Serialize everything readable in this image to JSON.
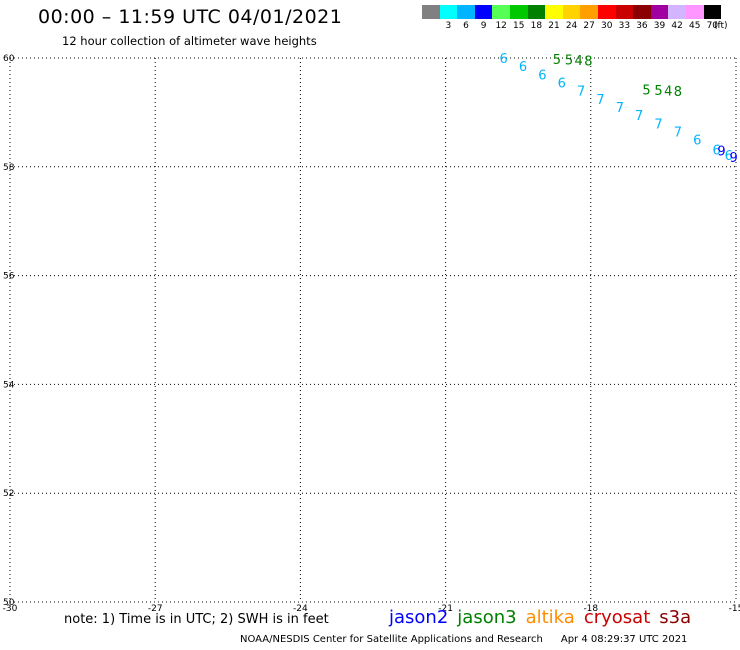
{
  "header": {
    "title": "00:00 – 11:59 UTC 04/01/2021",
    "subtitle": "12 hour collection of altimeter wave heights"
  },
  "scale": {
    "colors": [
      "#808080",
      "#00ffff",
      "#00b4ff",
      "#0000ff",
      "#55ff55",
      "#00c800",
      "#008000",
      "#ffff00",
      "#ffd200",
      "#ffa000",
      "#ff0000",
      "#c80000",
      "#8b0000",
      "#a000a0",
      "#d2b4ff",
      "#ff96ff",
      "#000000"
    ],
    "labels": [
      "",
      "3",
      "6",
      "9",
      "12",
      "15",
      "18",
      "21",
      "24",
      "27",
      "30",
      "33",
      "36",
      "39",
      "42",
      "45",
      "70"
    ],
    "unit": "(ft)"
  },
  "footer": {
    "note": "note: 1) Time is in UTC; 2) SWH is in feet",
    "legend": [
      {
        "name": "jason2",
        "color": "#0000ff"
      },
      {
        "name": "jason3",
        "color": "#008000"
      },
      {
        "name": "altika",
        "color": "#ff8c00"
      },
      {
        "name": "cryosat",
        "color": "#c80000"
      },
      {
        "name": "s3a",
        "color": "#8b0000"
      }
    ],
    "credit": "NOAA/NESDIS Center for Satellite Applications and Research",
    "timestamp": "Apr  4 08:29:37 UTC 2021"
  },
  "chart_data": {
    "type": "scatter",
    "xlim": [
      -30,
      -15
    ],
    "ylim": [
      50,
      60
    ],
    "x_ticks": [
      -30,
      -27,
      -24,
      -21,
      -18,
      -15
    ],
    "y_ticks": [
      50,
      52,
      54,
      56,
      58,
      60
    ],
    "x_tick_labels": [
      "-30",
      "-27",
      "-24",
      "-21",
      "-18",
      "-15"
    ],
    "y_tick_labels": [
      "50",
      "52",
      "54",
      "56",
      "58",
      "60"
    ],
    "grid": true,
    "series": [
      {
        "name": "jason2",
        "color": "#00b4ff",
        "points": [
          {
            "x": -19.8,
            "y": 60.0,
            "label": "6"
          },
          {
            "x": -19.4,
            "y": 59.85,
            "label": "6"
          },
          {
            "x": -19.0,
            "y": 59.7,
            "label": "6"
          },
          {
            "x": -18.6,
            "y": 59.55,
            "label": "6"
          },
          {
            "x": -18.2,
            "y": 59.4,
            "label": "7"
          },
          {
            "x": -17.8,
            "y": 59.25,
            "label": "7"
          },
          {
            "x": -17.4,
            "y": 59.1,
            "label": "7"
          },
          {
            "x": -17.0,
            "y": 58.95,
            "label": "7"
          },
          {
            "x": -16.6,
            "y": 58.8,
            "label": "7"
          },
          {
            "x": -16.2,
            "y": 58.65,
            "label": "7"
          },
          {
            "x": -15.8,
            "y": 58.5,
            "label": "6"
          },
          {
            "x": -15.4,
            "y": 58.32,
            "label": "6"
          },
          {
            "x": -15.15,
            "y": 58.22,
            "label": "6"
          }
        ]
      },
      {
        "name": "jason3",
        "color": "#008000",
        "points": [
          {
            "x": -18.7,
            "y": 59.98,
            "label": "5"
          },
          {
            "x": -18.45,
            "y": 59.97,
            "label": "5"
          },
          {
            "x": -18.25,
            "y": 59.96,
            "label": "4"
          },
          {
            "x": -18.05,
            "y": 59.95,
            "label": "8"
          },
          {
            "x": -16.85,
            "y": 59.42,
            "label": "5"
          },
          {
            "x": -16.6,
            "y": 59.41,
            "label": "5"
          },
          {
            "x": -16.4,
            "y": 59.4,
            "label": "4"
          },
          {
            "x": -16.2,
            "y": 59.39,
            "label": "8"
          }
        ]
      },
      {
        "name": "jason2",
        "color": "#0000ff",
        "points": [
          {
            "x": -15.3,
            "y": 58.3,
            "label": "9"
          },
          {
            "x": -15.05,
            "y": 58.18,
            "label": "9"
          }
        ]
      }
    ]
  }
}
